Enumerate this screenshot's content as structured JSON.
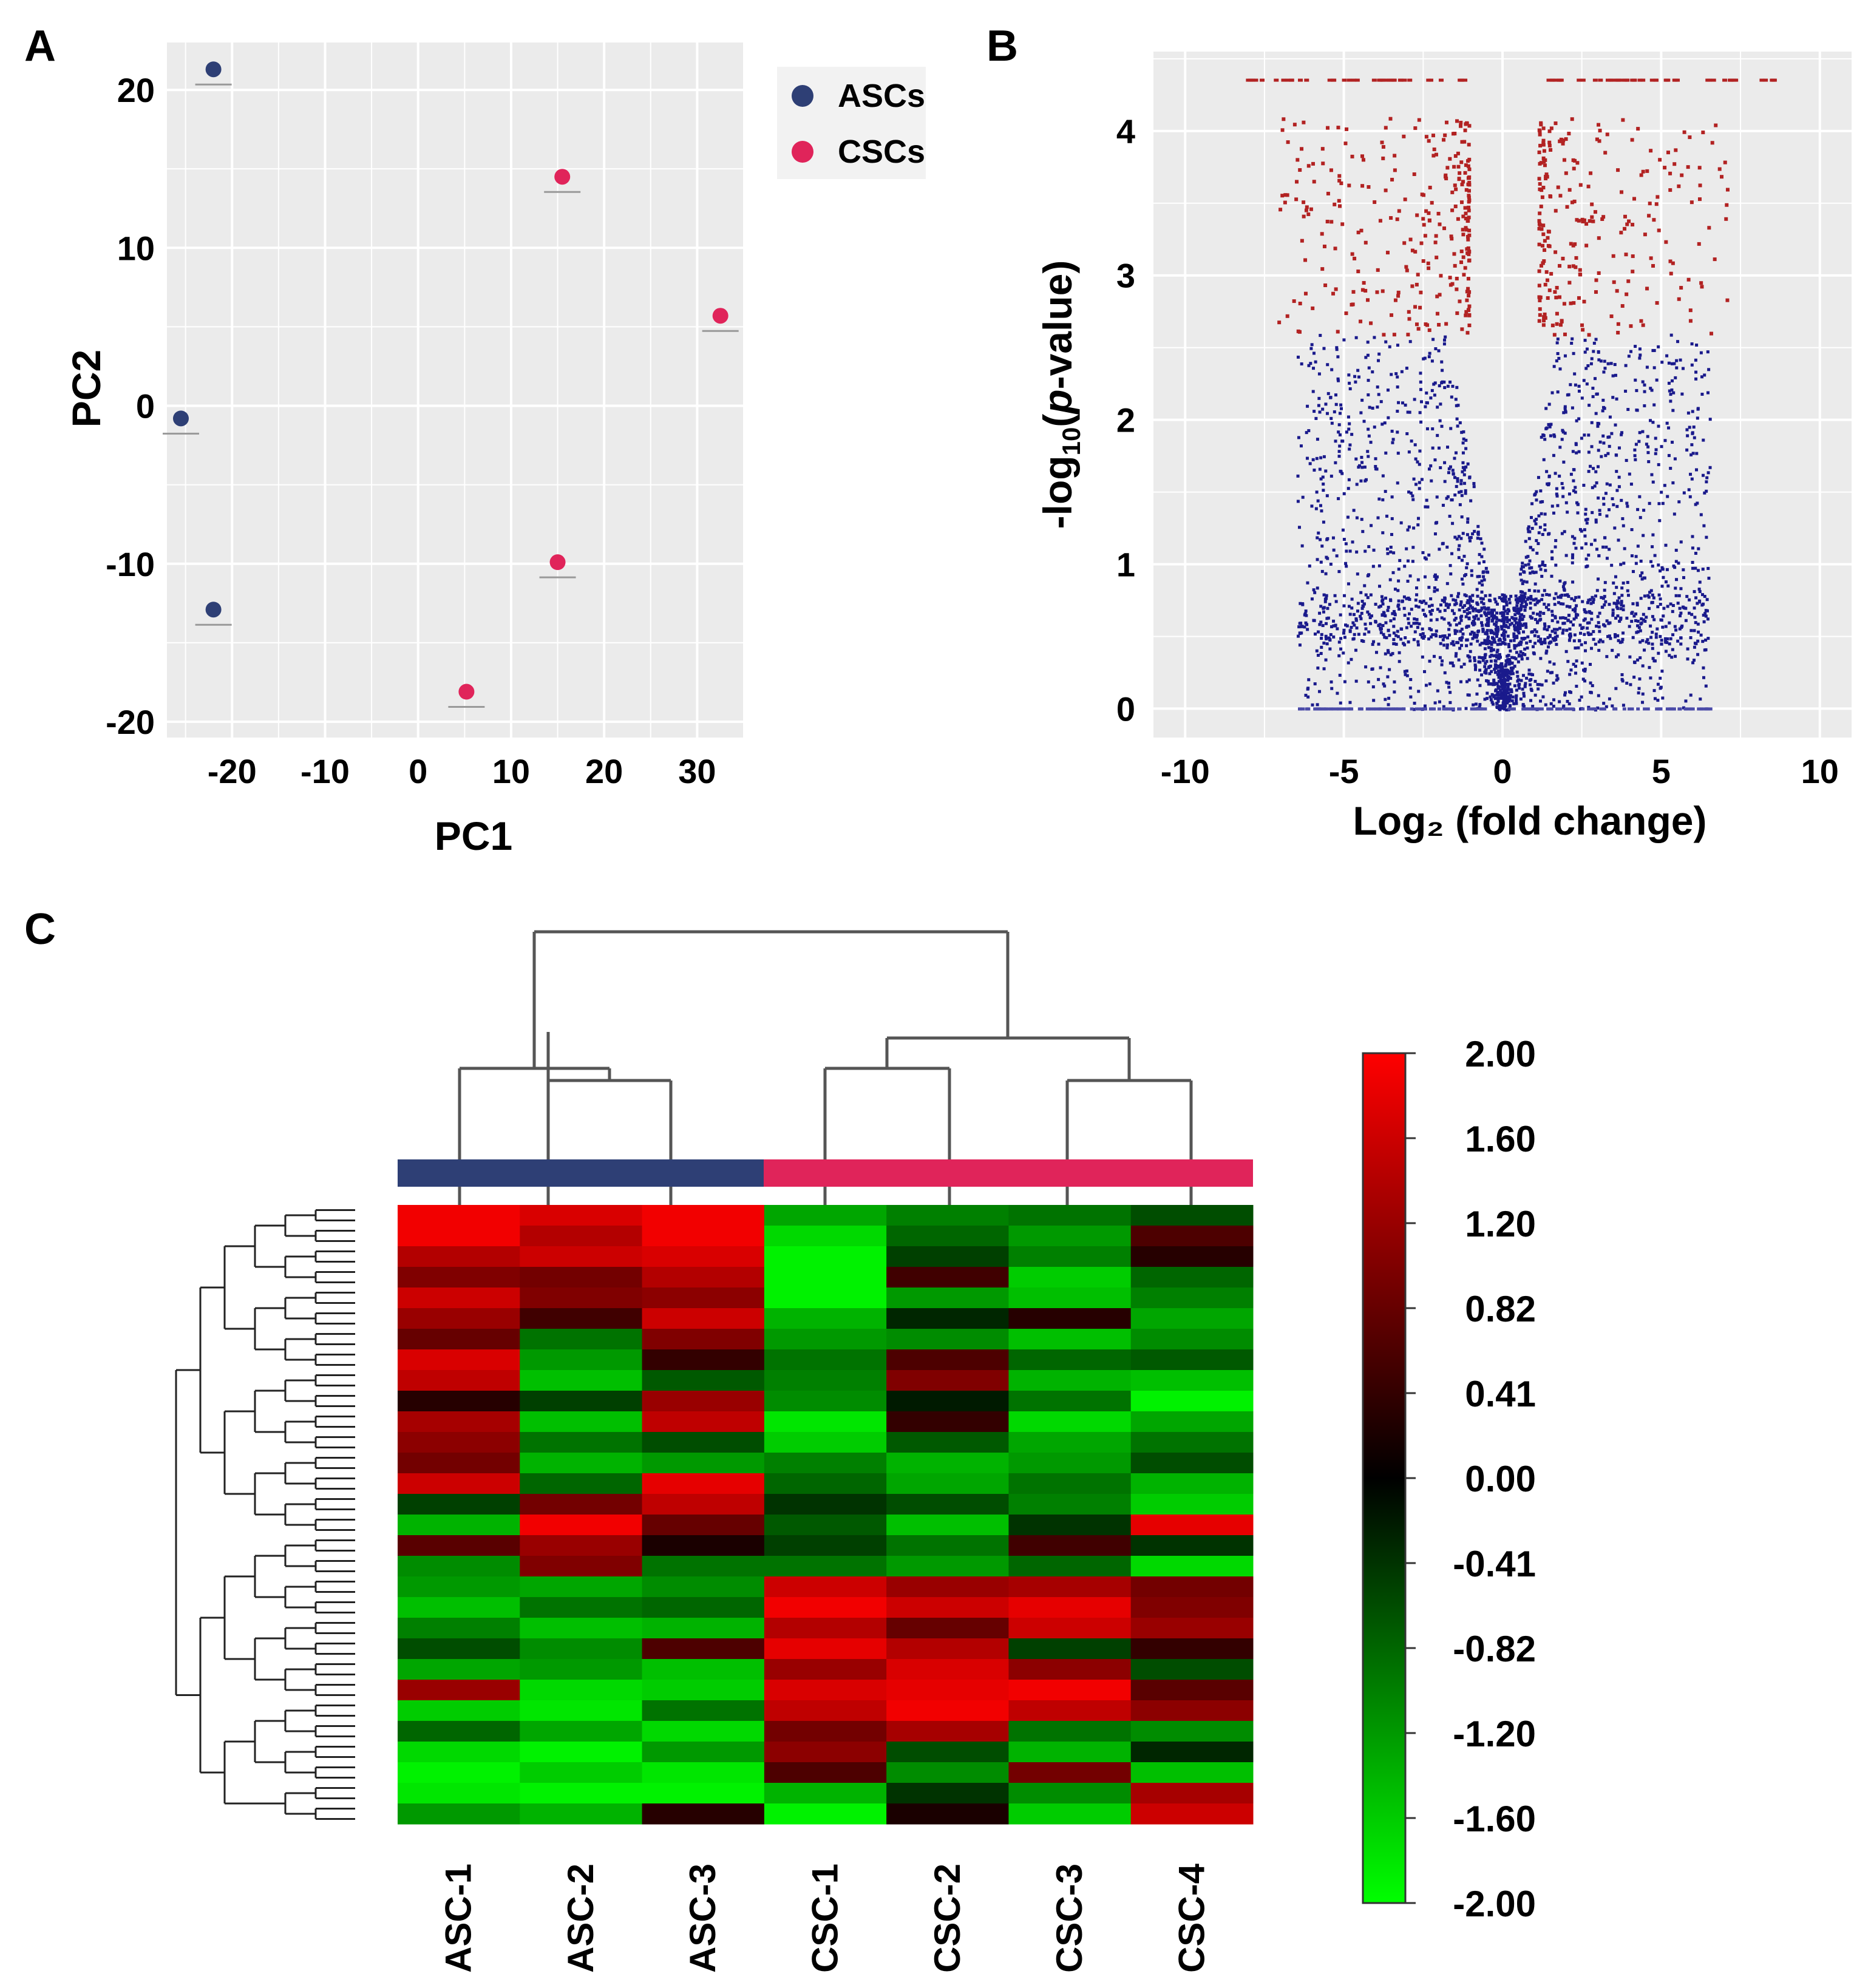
{
  "panels": {
    "a": "A",
    "b": "B",
    "c": "C"
  },
  "colors": {
    "asc": "#2e3f75",
    "csc": "#e0245a",
    "volcano_up": "#b22222",
    "volcano_ns": "#1a1a8c",
    "plot_bg": "#ebebeb"
  },
  "chart_data": [
    {
      "type": "scatter",
      "panel": "A",
      "xlabel": "PC1",
      "ylabel": "PC2",
      "xlim": [
        -27,
        35
      ],
      "ylim": [
        -21,
        23
      ],
      "xticks": [
        -20,
        -10,
        0,
        10,
        20,
        30
      ],
      "yticks": [
        -20,
        -10,
        0,
        10,
        20
      ],
      "xtick_labels": [
        "-20",
        "-10",
        "0",
        "10",
        "20",
        "30"
      ],
      "ytick_labels": [
        "-20",
        "-10",
        "0",
        "10",
        "20"
      ],
      "grid": true,
      "legend_position": "right",
      "series": [
        {
          "name": "ASCs",
          "color": "#2e3f75",
          "points": [
            {
              "x": -22,
              "y": 21.3
            },
            {
              "x": -25.5,
              "y": -0.8
            },
            {
              "x": -22,
              "y": -12.9
            }
          ]
        },
        {
          "name": "CSCs",
          "color": "#e0245a",
          "points": [
            {
              "x": 15.5,
              "y": 14.5
            },
            {
              "x": 32.5,
              "y": 5.7
            },
            {
              "x": 15,
              "y": -9.9
            },
            {
              "x": 5.2,
              "y": -18.1
            }
          ]
        }
      ]
    },
    {
      "type": "scatter",
      "panel": "B",
      "xlabel": "Log₂ (fold change)",
      "ylabel": "-log₁₀(p-value)",
      "ylabel_parts": {
        "pre": "-log",
        "sub": "10",
        "open": "(",
        "italic": "p",
        "post": "-value)"
      },
      "xlim": [
        -11,
        11
      ],
      "ylim": [
        -0.2,
        4.55
      ],
      "xticks": [
        -10,
        -5,
        0,
        5,
        10
      ],
      "yticks": [
        0,
        1,
        2,
        3,
        4
      ],
      "xtick_labels": [
        "-10",
        "-5",
        "0",
        "5",
        "10"
      ],
      "ytick_labels": [
        "0",
        "1",
        "2",
        "3",
        "4"
      ],
      "grid": true,
      "significance_threshold_y": 2.6,
      "significance_threshold_abs_x": 1.1,
      "max_y": 4.35
    },
    {
      "type": "heatmap",
      "panel": "C",
      "columns": [
        "ASC-1",
        "ASC-2",
        "ASC-3",
        "CSC-1",
        "CSC-2",
        "CSC-3",
        "CSC-4"
      ],
      "column_groups": [
        {
          "name": "ASCs",
          "color": "#2e3f75",
          "span": [
            0,
            2
          ]
        },
        {
          "name": "CSCs",
          "color": "#e0245a",
          "span": [
            3,
            6
          ]
        }
      ],
      "color_scale": {
        "min": -2.0,
        "max": 2.0,
        "ticks": [
          "2.00",
          "1.60",
          "1.20",
          "0.82",
          "0.41",
          "0.00",
          "-0.41",
          "-0.82",
          "-1.20",
          "-1.60",
          "-2.00"
        ]
      },
      "rows": [
        {
          "label": "",
          "values": [
            1.9,
            1.7,
            1.9,
            -1.3,
            -1.0,
            -0.9,
            -0.6
          ]
        },
        {
          "label": "",
          "values": [
            1.9,
            1.4,
            1.9,
            -1.7,
            -0.8,
            -1.2,
            0.6
          ]
        },
        {
          "label": "",
          "values": [
            1.4,
            1.6,
            1.7,
            -1.9,
            -0.5,
            -1.0,
            0.3
          ]
        },
        {
          "label": "",
          "values": [
            1.0,
            0.9,
            1.4,
            -1.9,
            0.5,
            -1.6,
            -0.8
          ]
        },
        {
          "label": "",
          "values": [
            1.6,
            1.0,
            1.1,
            -1.9,
            -1.2,
            -1.5,
            -1.0
          ]
        },
        {
          "label": "",
          "values": [
            1.2,
            0.5,
            1.6,
            -1.4,
            -0.3,
            0.3,
            -1.3
          ]
        },
        {
          "label": "",
          "values": [
            0.8,
            -0.9,
            1.0,
            -1.2,
            -1.1,
            -1.5,
            -1.1
          ]
        },
        {
          "label": "",
          "values": [
            1.7,
            -1.2,
            0.4,
            -0.9,
            0.6,
            -0.8,
            -0.7
          ]
        },
        {
          "label": "",
          "values": [
            1.5,
            -1.5,
            -0.7,
            -1.0,
            1.0,
            -1.4,
            -1.5
          ]
        },
        {
          "label": "",
          "values": [
            0.3,
            -0.5,
            1.2,
            -1.1,
            -0.2,
            -0.9,
            -1.9
          ]
        },
        {
          "label": "",
          "values": [
            1.3,
            -1.5,
            1.5,
            -1.8,
            0.4,
            -1.7,
            -1.3
          ]
        },
        {
          "label": "",
          "values": [
            1.1,
            -0.9,
            -0.6,
            -1.6,
            -0.7,
            -1.3,
            -0.9
          ]
        },
        {
          "label": "",
          "values": [
            0.9,
            -1.4,
            -1.2,
            -1.0,
            -1.4,
            -1.2,
            -0.6
          ]
        },
        {
          "label": "",
          "values": [
            1.6,
            -0.8,
            1.8,
            -0.8,
            -1.3,
            -0.9,
            -1.4
          ]
        },
        {
          "label": "",
          "values": [
            -0.5,
            0.9,
            1.5,
            -0.4,
            -0.6,
            -1.0,
            -1.6
          ]
        },
        {
          "label": "",
          "values": [
            -1.4,
            1.9,
            0.8,
            -0.7,
            -1.5,
            -0.4,
            1.8
          ]
        },
        {
          "label": "",
          "values": [
            0.7,
            1.2,
            0.2,
            -0.5,
            -0.9,
            0.5,
            -0.4
          ]
        },
        {
          "label": "",
          "values": [
            -1.1,
            1.0,
            -0.9,
            -0.9,
            -1.2,
            -0.8,
            -1.7
          ]
        },
        {
          "label": "",
          "values": [
            -1.2,
            -1.3,
            -1.1,
            1.6,
            1.2,
            1.3,
            0.9
          ]
        },
        {
          "label": "",
          "values": [
            -1.5,
            -0.9,
            -0.8,
            1.9,
            1.6,
            1.8,
            1.0
          ]
        },
        {
          "label": "",
          "values": [
            -1.0,
            -1.5,
            -1.4,
            1.4,
            0.8,
            1.6,
            1.2
          ]
        },
        {
          "label": "",
          "values": [
            -0.6,
            -1.1,
            0.6,
            1.8,
            1.4,
            -0.5,
            0.4
          ]
        },
        {
          "label": "",
          "values": [
            -1.3,
            -1.2,
            -1.5,
            1.2,
            1.7,
            1.1,
            -0.6
          ]
        },
        {
          "label": "",
          "values": [
            1.2,
            -1.7,
            -1.6,
            1.7,
            1.8,
            1.9,
            0.7
          ]
        },
        {
          "label": "",
          "values": [
            -1.6,
            -1.8,
            -0.9,
            1.5,
            1.9,
            1.5,
            1.1
          ]
        },
        {
          "label": "",
          "values": [
            -0.8,
            -1.3,
            -1.7,
            0.9,
            1.3,
            -0.9,
            -1.1
          ]
        },
        {
          "label": "",
          "values": [
            -1.7,
            -1.9,
            -1.2,
            1.1,
            -0.6,
            -1.4,
            -0.3
          ]
        },
        {
          "label": "",
          "values": [
            -1.9,
            -1.6,
            -1.8,
            0.6,
            -1.1,
            0.9,
            -1.5
          ]
        },
        {
          "label": "",
          "values": [
            -1.8,
            -1.9,
            -1.9,
            -1.4,
            -0.4,
            -1.1,
            1.3
          ]
        },
        {
          "label": "",
          "values": [
            -1.2,
            -1.4,
            0.3,
            -1.9,
            0.2,
            -1.6,
            1.6
          ]
        }
      ]
    }
  ]
}
